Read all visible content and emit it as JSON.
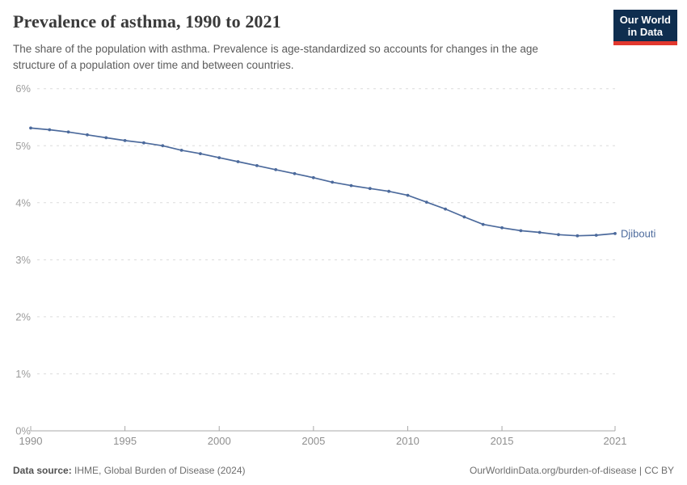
{
  "header": {
    "title": "Prevalence of asthma, 1990 to 2021",
    "subtitle_lines": [
      "The share of the population with asthma. Prevalence is age-standardized so accounts for changes in the age",
      "structure of a population over time and between countries."
    ],
    "logo": {
      "line1": "Our World",
      "line2": "in Data",
      "bg_color": "#0f2e4f",
      "accent_color": "#e2382e"
    }
  },
  "chart_data": {
    "type": "line",
    "title": "Prevalence of asthma, 1990 to 2021",
    "unit": "%",
    "x": [
      1990,
      1991,
      1992,
      1993,
      1994,
      1995,
      1996,
      1997,
      1998,
      1999,
      2000,
      2001,
      2002,
      2003,
      2004,
      2005,
      2006,
      2007,
      2008,
      2009,
      2010,
      2011,
      2012,
      2013,
      2014,
      2015,
      2016,
      2017,
      2018,
      2019,
      2020,
      2021
    ],
    "series": [
      {
        "name": "Djibouti",
        "color": "#4C6A9C",
        "values": [
          5.31,
          5.28,
          5.24,
          5.19,
          5.14,
          5.09,
          5.05,
          5.0,
          4.92,
          4.86,
          4.79,
          4.72,
          4.65,
          4.58,
          4.51,
          4.44,
          4.36,
          4.3,
          4.25,
          4.2,
          4.13,
          4.01,
          3.89,
          3.75,
          3.62,
          3.56,
          3.51,
          3.48,
          3.44,
          3.42,
          3.43,
          3.46
        ]
      }
    ],
    "xlim": [
      1990,
      2021
    ],
    "ylim": [
      0,
      6.3
    ],
    "x_ticks": [
      "1990",
      "1995",
      "2000",
      "2005",
      "2010",
      "2015",
      "2021"
    ],
    "y_ticks": [
      "0%",
      "1%",
      "2%",
      "3%",
      "4%",
      "5%",
      "6%"
    ],
    "grid": "horizontal-dashed",
    "legend": "inline-end-label",
    "grid_color": "#dcdcdc",
    "axis_color": "#a8a8a8",
    "tick_label_color": "#8f8f8f"
  },
  "footer": {
    "source_label": "Data source:",
    "source_value": "IHME, Global Burden of Disease (2024)",
    "credit": "OurWorldinData.org/burden-of-disease | CC BY"
  }
}
